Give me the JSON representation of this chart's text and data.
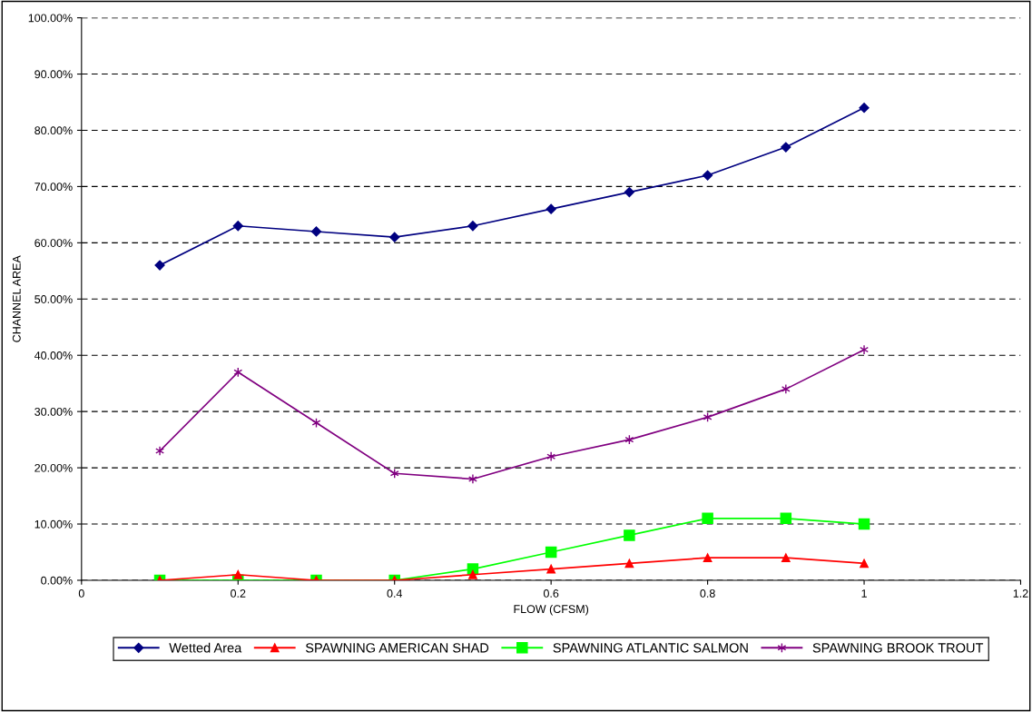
{
  "chart_data": {
    "type": "line",
    "xlabel": "FLOW (CFSM)",
    "ylabel": "CHANNEL AREA",
    "x": [
      0.1,
      0.2,
      0.3,
      0.4,
      0.5,
      0.6,
      0.7,
      0.8,
      0.9,
      1.0
    ],
    "series": [
      {
        "name": "Wetted Area",
        "color": "#000080",
        "marker": "diamond",
        "values": [
          56,
          63,
          62,
          61,
          63,
          66,
          69,
          72,
          77,
          84
        ]
      },
      {
        "name": "SPAWNING AMERICAN SHAD",
        "color": "#ff0000",
        "marker": "triangle",
        "values": [
          0,
          1,
          0,
          0,
          1,
          2,
          3,
          4,
          4,
          3
        ]
      },
      {
        "name": "SPAWNING ATLANTIC SALMON",
        "color": "#00ff00",
        "marker": "square",
        "values": [
          0,
          0,
          0,
          0,
          2,
          5,
          8,
          11,
          11,
          10
        ]
      },
      {
        "name": "SPAWNING BROOK TROUT",
        "color": "#800080",
        "marker": "cross",
        "values": [
          23,
          37,
          28,
          19,
          18,
          22,
          25,
          29,
          34,
          41
        ]
      }
    ],
    "xlim": [
      0,
      1.2
    ],
    "xticks": [
      0,
      0.2,
      0.4,
      0.6,
      0.8,
      1,
      1.2
    ],
    "ylim": [
      0,
      100
    ],
    "yticks": [
      {
        "value": 0,
        "label": "0.00%"
      },
      {
        "value": 10,
        "label": "10.00%"
      },
      {
        "value": 20,
        "label": "20.00%"
      },
      {
        "value": 30,
        "label": "30.00%"
      },
      {
        "value": 40,
        "label": "40.00%"
      },
      {
        "value": 50,
        "label": "50.00%"
      },
      {
        "value": 60,
        "label": "60.00%"
      },
      {
        "value": 70,
        "label": "70.00%"
      },
      {
        "value": 80,
        "label": "80.00%"
      },
      {
        "value": 90,
        "label": "90.00%"
      },
      {
        "value": 100,
        "label": "100.00%"
      }
    ],
    "grid": "y",
    "legend": "bottom",
    "line_style": "solid"
  }
}
